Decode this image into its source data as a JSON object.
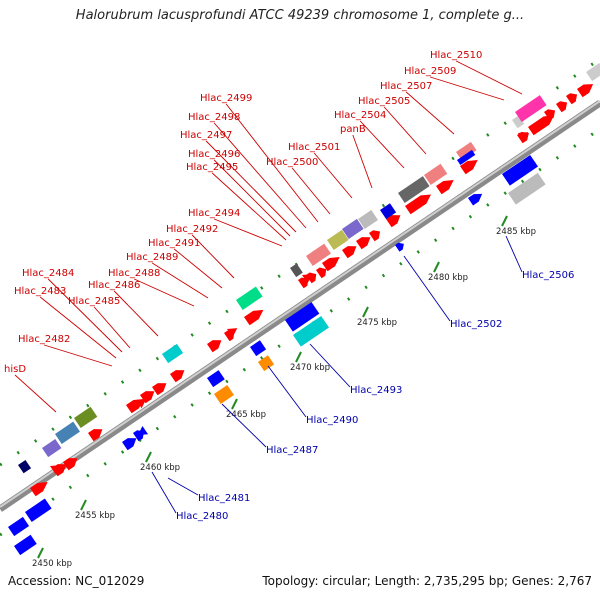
{
  "title": "Halorubrum lacusprofundi ATCC 49239 chromosome 1, complete g...",
  "accession": "Accession: NC_012029",
  "summary": "Topology: circular; Length: 2,735,295 bp; Genes: 2,767",
  "colors": {
    "forward_label": "#cc0000",
    "reverse_label": "#0000aa",
    "forward_gene": "#ff0000",
    "reverse_gene": "#0000ff",
    "backbone": "#999999",
    "tick": "#228b22"
  },
  "diagram": {
    "kbp_ticks": [
      "2450 kbp",
      "2455 kbp",
      "2460 kbp",
      "2465 kbp",
      "2470 kbp",
      "2475 kbp",
      "2480 kbp",
      "2485 kbp"
    ],
    "forward_gene_labels": [
      "hisD",
      "Hlac_2482",
      "Hlac_2483",
      "Hlac_2484",
      "Hlac_2485",
      "Hlac_2486",
      "Hlac_2488",
      "Hlac_2489",
      "Hlac_2491",
      "Hlac_2492",
      "Hlac_2494",
      "Hlac_2495",
      "Hlac_2496",
      "Hlac_2497",
      "Hlac_2498",
      "Hlac_2499",
      "Hlac_2500",
      "Hlac_2501",
      "panB",
      "Hlac_2504",
      "Hlac_2505",
      "Hlac_2507",
      "Hlac_2509",
      "Hlac_2510"
    ],
    "reverse_gene_labels": [
      "Hlac_2480",
      "Hlac_2481",
      "Hlac_2487",
      "Hlac_2490",
      "Hlac_2493",
      "Hlac_2502",
      "Hlac_2506"
    ]
  }
}
